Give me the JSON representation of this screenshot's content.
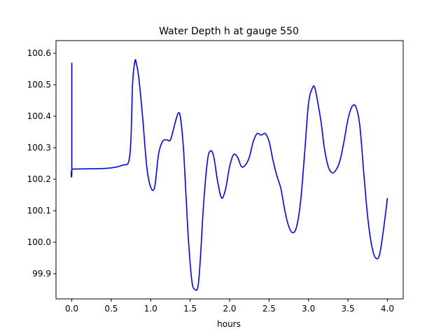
{
  "chart_data": {
    "type": "line",
    "title": "Water Depth h at gauge 550",
    "xlabel": "hours",
    "ylabel": "",
    "xlim": [
      -0.2,
      4.2
    ],
    "ylim": [
      99.82,
      100.64
    ],
    "xticks": [
      0.0,
      0.5,
      1.0,
      1.5,
      2.0,
      2.5,
      3.0,
      3.5,
      4.0
    ],
    "xtick_labels": [
      "0.0",
      "0.5",
      "1.0",
      "1.5",
      "2.0",
      "2.5",
      "3.0",
      "3.5",
      "4.0"
    ],
    "yticks": [
      99.9,
      100.0,
      100.1,
      100.2,
      100.3,
      100.4,
      100.5,
      100.6
    ],
    "ytick_labels": [
      "99.9",
      "100.0",
      "100.1",
      "100.2",
      "100.3",
      "100.4",
      "100.5",
      "100.6"
    ],
    "grid": false,
    "series": [
      {
        "color": "#0000ff",
        "x": [
          0.0,
          0.0,
          0.01,
          0.2,
          0.4,
          0.55,
          0.65,
          0.72,
          0.75,
          0.77,
          0.8,
          0.82,
          0.85,
          0.9,
          0.95,
          1.0,
          1.05,
          1.1,
          1.15,
          1.2,
          1.25,
          1.3,
          1.35,
          1.38,
          1.42,
          1.47,
          1.52,
          1.56,
          1.6,
          1.63,
          1.67,
          1.72,
          1.76,
          1.8,
          1.85,
          1.9,
          1.95,
          2.0,
          2.05,
          2.1,
          2.15,
          2.2,
          2.25,
          2.3,
          2.35,
          2.4,
          2.45,
          2.5,
          2.55,
          2.6,
          2.65,
          2.7,
          2.75,
          2.8,
          2.85,
          2.9,
          2.95,
          3.0,
          3.05,
          3.08,
          3.12,
          3.16,
          3.2,
          3.25,
          3.3,
          3.35,
          3.4,
          3.45,
          3.5,
          3.55,
          3.6,
          3.65,
          3.7,
          3.75,
          3.8,
          3.85,
          3.9,
          3.95,
          4.0
        ],
        "y": [
          100.57,
          100.232,
          100.232,
          100.233,
          100.234,
          100.238,
          100.245,
          100.255,
          100.33,
          100.5,
          100.575,
          100.565,
          100.52,
          100.39,
          100.24,
          100.175,
          100.175,
          100.28,
          100.32,
          100.325,
          100.325,
          100.37,
          100.41,
          100.39,
          100.28,
          100.04,
          99.88,
          99.85,
          99.86,
          99.95,
          100.12,
          100.26,
          100.29,
          100.27,
          100.19,
          100.14,
          100.17,
          100.24,
          100.278,
          100.27,
          100.24,
          100.245,
          100.27,
          100.32,
          100.345,
          100.34,
          100.345,
          100.32,
          100.26,
          100.21,
          100.17,
          100.1,
          100.05,
          100.03,
          100.05,
          100.13,
          100.28,
          100.44,
          100.49,
          100.49,
          100.44,
          100.38,
          100.3,
          100.24,
          100.22,
          100.23,
          100.26,
          100.32,
          100.39,
          100.43,
          100.43,
          100.37,
          100.22,
          100.08,
          99.99,
          99.95,
          99.96,
          100.04,
          100.14
        ]
      }
    ]
  }
}
